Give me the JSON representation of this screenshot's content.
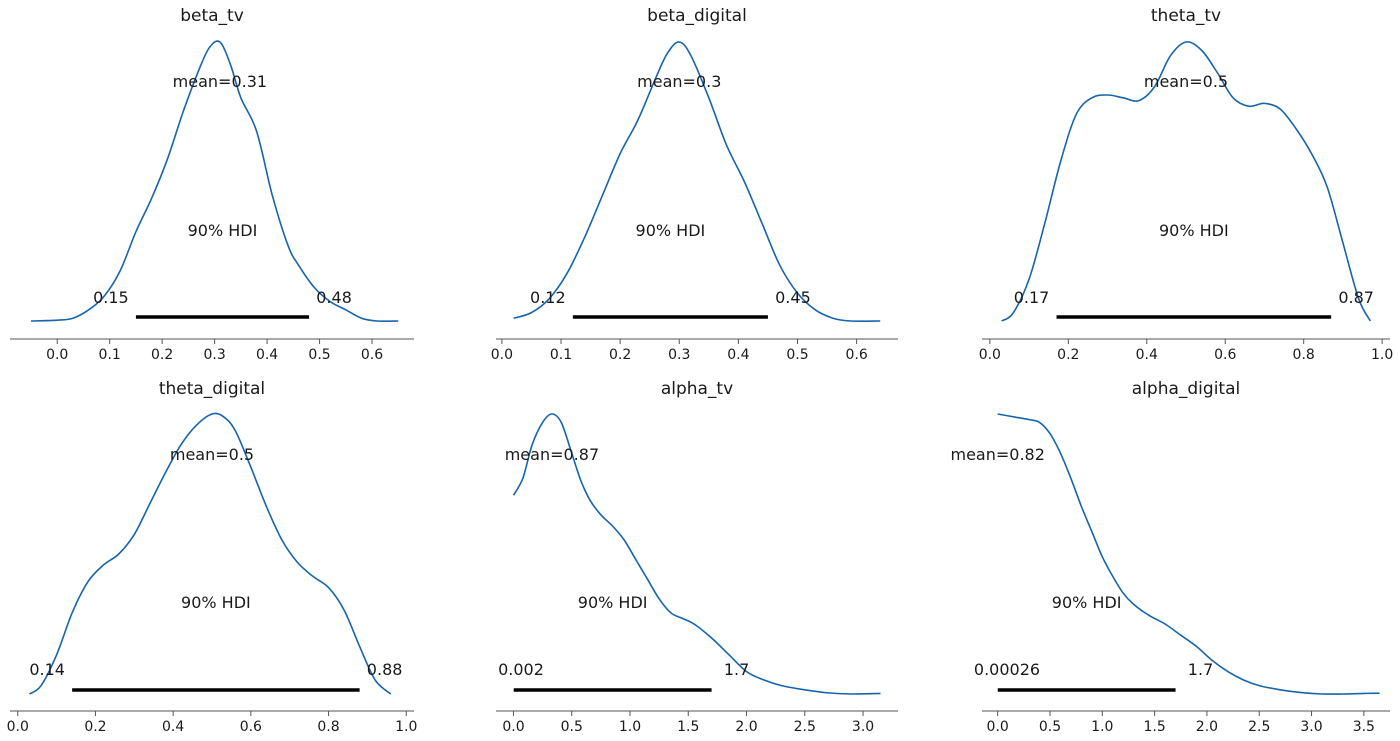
{
  "figure": {
    "type": "posterior density grid",
    "rows": 2,
    "cols": 3
  },
  "colors": {
    "curve": "#1764ab",
    "hdi": "#000000",
    "axis": "#555555"
  },
  "chart_data": [
    {
      "type": "line",
      "title": "beta_tv",
      "mean_label": "mean=0.31",
      "hdi_label": "90% HDI",
      "hdi": [
        0.15,
        0.48
      ],
      "hdi_low_label": "0.15",
      "hdi_high_label": "0.48",
      "xlim": [
        -0.09,
        0.68
      ],
      "xticks": [
        0.0,
        0.1,
        0.2,
        0.3,
        0.4,
        0.5,
        0.6
      ],
      "xtick_labels": [
        "0.0",
        "0.1",
        "0.2",
        "0.3",
        "0.4",
        "0.5",
        "0.6"
      ],
      "density": {
        "x": [
          -0.05,
          0.0,
          0.03,
          0.06,
          0.09,
          0.12,
          0.15,
          0.18,
          0.21,
          0.24,
          0.27,
          0.29,
          0.31,
          0.33,
          0.35,
          0.38,
          0.41,
          0.44,
          0.46,
          0.49,
          0.52,
          0.55,
          0.58,
          0.61,
          0.65
        ],
        "y": [
          0.0,
          0.003,
          0.01,
          0.04,
          0.09,
          0.18,
          0.32,
          0.44,
          0.58,
          0.75,
          0.9,
          0.98,
          1.0,
          0.92,
          0.8,
          0.68,
          0.45,
          0.27,
          0.2,
          0.12,
          0.07,
          0.04,
          0.01,
          0.0,
          0.0
        ]
      }
    },
    {
      "type": "line",
      "title": "beta_digital",
      "mean_label": "mean=0.3",
      "hdi_label": "90% HDI",
      "hdi": [
        0.12,
        0.45
      ],
      "hdi_low_label": "0.12",
      "hdi_high_label": "0.45",
      "xlim": [
        -0.01,
        0.67
      ],
      "xticks": [
        0.0,
        0.1,
        0.2,
        0.3,
        0.4,
        0.5,
        0.6
      ],
      "xtick_labels": [
        "0.0",
        "0.1",
        "0.2",
        "0.3",
        "0.4",
        "0.5",
        "0.6"
      ],
      "density": {
        "x": [
          0.02,
          0.05,
          0.08,
          0.11,
          0.14,
          0.17,
          0.2,
          0.23,
          0.26,
          0.28,
          0.3,
          0.32,
          0.35,
          0.38,
          0.41,
          0.44,
          0.47,
          0.5,
          0.53,
          0.56,
          0.59,
          0.64
        ],
        "y": [
          0.01,
          0.03,
          0.08,
          0.17,
          0.3,
          0.45,
          0.6,
          0.72,
          0.87,
          0.96,
          1.0,
          0.95,
          0.8,
          0.63,
          0.5,
          0.35,
          0.2,
          0.1,
          0.04,
          0.01,
          0.0,
          0.0
        ]
      }
    },
    {
      "type": "line",
      "title": "theta_tv",
      "mean_label": "mean=0.5",
      "hdi_label": "90% HDI",
      "hdi": [
        0.17,
        0.87
      ],
      "hdi_low_label": "0.17",
      "hdi_high_label": "0.87",
      "xlim": [
        -0.02,
        1.02
      ],
      "xticks": [
        0.0,
        0.2,
        0.4,
        0.6,
        0.8,
        1.0
      ],
      "xtick_labels": [
        "0.0",
        "0.2",
        "0.4",
        "0.6",
        "0.8",
        "1.0"
      ],
      "density": {
        "x": [
          0.03,
          0.06,
          0.1,
          0.14,
          0.18,
          0.22,
          0.26,
          0.3,
          0.34,
          0.38,
          0.42,
          0.46,
          0.5,
          0.54,
          0.58,
          0.62,
          0.66,
          0.7,
          0.74,
          0.78,
          0.82,
          0.86,
          0.9,
          0.94,
          0.97
        ],
        "y": [
          0.0,
          0.03,
          0.15,
          0.35,
          0.57,
          0.74,
          0.8,
          0.81,
          0.8,
          0.79,
          0.84,
          0.95,
          1.0,
          0.97,
          0.89,
          0.8,
          0.77,
          0.78,
          0.76,
          0.69,
          0.6,
          0.48,
          0.28,
          0.08,
          0.0
        ]
      }
    },
    {
      "type": "line",
      "title": "theta_digital",
      "mean_label": "mean=0.5",
      "hdi_label": "90% HDI",
      "hdi": [
        0.14,
        0.88
      ],
      "hdi_low_label": "0.14",
      "hdi_high_label": "0.88",
      "xlim": [
        -0.02,
        1.02
      ],
      "xticks": [
        0.0,
        0.2,
        0.4,
        0.6,
        0.8,
        1.0
      ],
      "xtick_labels": [
        "0.0",
        "0.2",
        "0.4",
        "0.6",
        "0.8",
        "1.0"
      ],
      "density": {
        "x": [
          0.03,
          0.06,
          0.1,
          0.14,
          0.18,
          0.22,
          0.26,
          0.3,
          0.34,
          0.38,
          0.42,
          0.46,
          0.5,
          0.53,
          0.56,
          0.6,
          0.64,
          0.68,
          0.72,
          0.76,
          0.8,
          0.84,
          0.88,
          0.92,
          0.96
        ],
        "y": [
          0.0,
          0.03,
          0.14,
          0.29,
          0.4,
          0.46,
          0.5,
          0.57,
          0.68,
          0.79,
          0.89,
          0.96,
          1.0,
          0.99,
          0.94,
          0.81,
          0.67,
          0.55,
          0.47,
          0.42,
          0.38,
          0.3,
          0.17,
          0.05,
          0.0
        ]
      }
    },
    {
      "type": "line",
      "title": "alpha_tv",
      "mean_label": "mean=0.87",
      "hdi_label": "90% HDI",
      "hdi": [
        0.002,
        1.7
      ],
      "hdi_low_label": "0.002",
      "hdi_high_label": "1.7",
      "xlim": [
        -0.15,
        3.3
      ],
      "xticks": [
        0.0,
        0.5,
        1.0,
        1.5,
        2.0,
        2.5,
        3.0
      ],
      "xtick_labels": [
        "0.0",
        "0.5",
        "1.0",
        "1.5",
        "2.0",
        "2.5",
        "3.0"
      ],
      "density": {
        "x": [
          0.0,
          0.08,
          0.16,
          0.25,
          0.33,
          0.41,
          0.5,
          0.58,
          0.66,
          0.75,
          0.85,
          0.95,
          1.05,
          1.15,
          1.25,
          1.35,
          1.45,
          1.55,
          1.7,
          1.85,
          2.0,
          2.15,
          2.3,
          2.5,
          2.7,
          2.9,
          3.15
        ],
        "y": [
          0.71,
          0.77,
          0.89,
          0.97,
          1.0,
          0.97,
          0.86,
          0.76,
          0.69,
          0.64,
          0.6,
          0.55,
          0.48,
          0.41,
          0.34,
          0.29,
          0.27,
          0.25,
          0.2,
          0.14,
          0.08,
          0.05,
          0.03,
          0.015,
          0.004,
          0.0,
          0.002
        ]
      }
    },
    {
      "type": "line",
      "title": "alpha_digital",
      "mean_label": "mean=0.82",
      "hdi_label": "90% HDI",
      "hdi": [
        0.00026,
        1.7
      ],
      "hdi_low_label": "0.00026",
      "hdi_high_label": "1.7",
      "xlim": [
        -0.15,
        3.75
      ],
      "xticks": [
        0.0,
        0.5,
        1.0,
        1.5,
        2.0,
        2.5,
        3.0,
        3.5
      ],
      "xtick_labels": [
        "0.0",
        "0.5",
        "1.0",
        "1.5",
        "2.0",
        "2.5",
        "3.0",
        "3.5"
      ],
      "density": {
        "x": [
          0.0,
          0.15,
          0.3,
          0.4,
          0.5,
          0.6,
          0.7,
          0.8,
          0.9,
          1.0,
          1.1,
          1.2,
          1.3,
          1.45,
          1.6,
          1.75,
          1.9,
          2.05,
          2.2,
          2.35,
          2.5,
          2.7,
          2.9,
          3.1,
          3.3,
          3.5,
          3.65
        ],
        "y": [
          1.0,
          0.99,
          0.98,
          0.97,
          0.93,
          0.86,
          0.77,
          0.67,
          0.58,
          0.49,
          0.42,
          0.36,
          0.32,
          0.28,
          0.25,
          0.21,
          0.17,
          0.12,
          0.08,
          0.05,
          0.03,
          0.015,
          0.005,
          0.0,
          0.0,
          0.002,
          0.003
        ]
      }
    }
  ]
}
